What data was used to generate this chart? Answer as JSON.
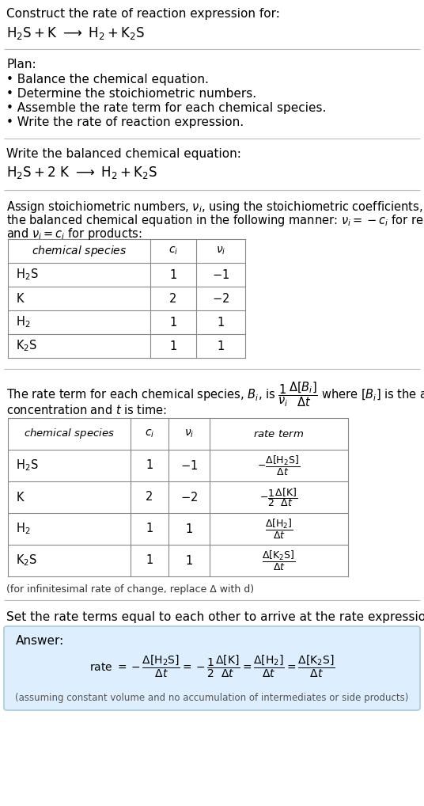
{
  "bg_color": "#ffffff",
  "answer_bg_color": "#ddeeff",
  "answer_border_color": "#aaccdd",
  "title_text": "Construct the rate of reaction expression for:",
  "section_separator_color": "#bbbbbb",
  "plan_header": "Plan:",
  "plan_items": [
    "• Balance the chemical equation.",
    "• Determine the stoichiometric numbers.",
    "• Assemble the rate term for each chemical species.",
    "• Write the rate of reaction expression."
  ],
  "balanced_header": "Write the balanced chemical equation:",
  "stoich_header_line1": "Assign stoichiometric numbers, νᵢ, using the stoichiometric coefficients, cᵢ, from",
  "stoich_header_line2": "the balanced chemical equation in the following manner: νᵢ = −cᵢ for reactants",
  "stoich_header_line3": "and νᵢ = cᵢ for products:",
  "rate_header_p1": "The rate term for each chemical species, Bᵢ, is",
  "rate_header_p2": " where [Bᵢ] is the amount",
  "rate_header_line2": "concentration and t is time:",
  "infinitesimal_note": "(for infinitesimal rate of change, replace Δ with d)",
  "set_equal_header": "Set the rate terms equal to each other to arrive at the rate expression:",
  "answer_label": "Answer:",
  "answer_footnote": "(assuming constant volume and no accumulation of intermediates or side products)"
}
